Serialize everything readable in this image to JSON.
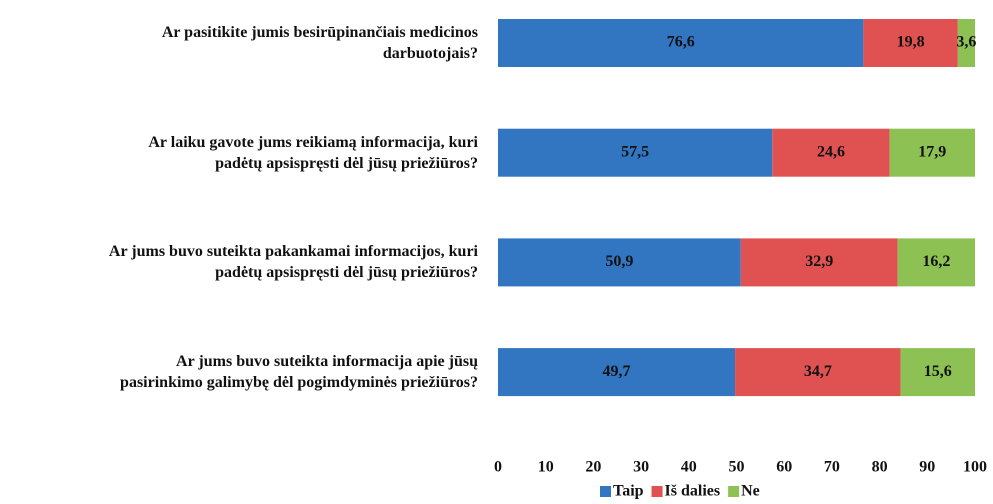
{
  "chart_data": {
    "type": "stacked_barh",
    "categories": [
      "Ar pasitikite jumis besirūpinančiais medicinos\ndarbuotojais?",
      "Ar laiku gavote jums reikiamą  informacija, kuri\npadėtų apsispręsti dėl jūsų priežiūros?",
      "Ar jums buvo suteikta pakankamai informacijos, kuri\npadėtų apsispręsti dėl jūsų priežiūros?",
      "Ar jums buvo suteikta informacija apie jūsų\npasirinkimo galimybę dėl pogimdyminės priežiūros?"
    ],
    "series": [
      {
        "name": "Taip",
        "color": "#3275c1",
        "values": [
          76.6,
          57.5,
          50.9,
          49.7
        ],
        "value_labels": [
          "76,6",
          "57,5",
          "50,9",
          "49,7"
        ]
      },
      {
        "name": "Iš dalies",
        "color": "#e05252",
        "values": [
          19.8,
          24.6,
          32.9,
          34.7
        ],
        "value_labels": [
          "19,8",
          "24,6",
          "32,9",
          "34,7"
        ]
      },
      {
        "name": "Ne",
        "color": "#8dc153",
        "values": [
          3.6,
          17.9,
          16.2,
          15.6
        ],
        "value_labels": [
          "3,6",
          "17,9",
          "16,2",
          "15,6"
        ]
      }
    ],
    "xlim": [
      0,
      100
    ],
    "xticks": [
      0,
      10,
      20,
      30,
      40,
      50,
      60,
      70,
      80,
      90,
      100
    ],
    "legend": "bottom"
  }
}
